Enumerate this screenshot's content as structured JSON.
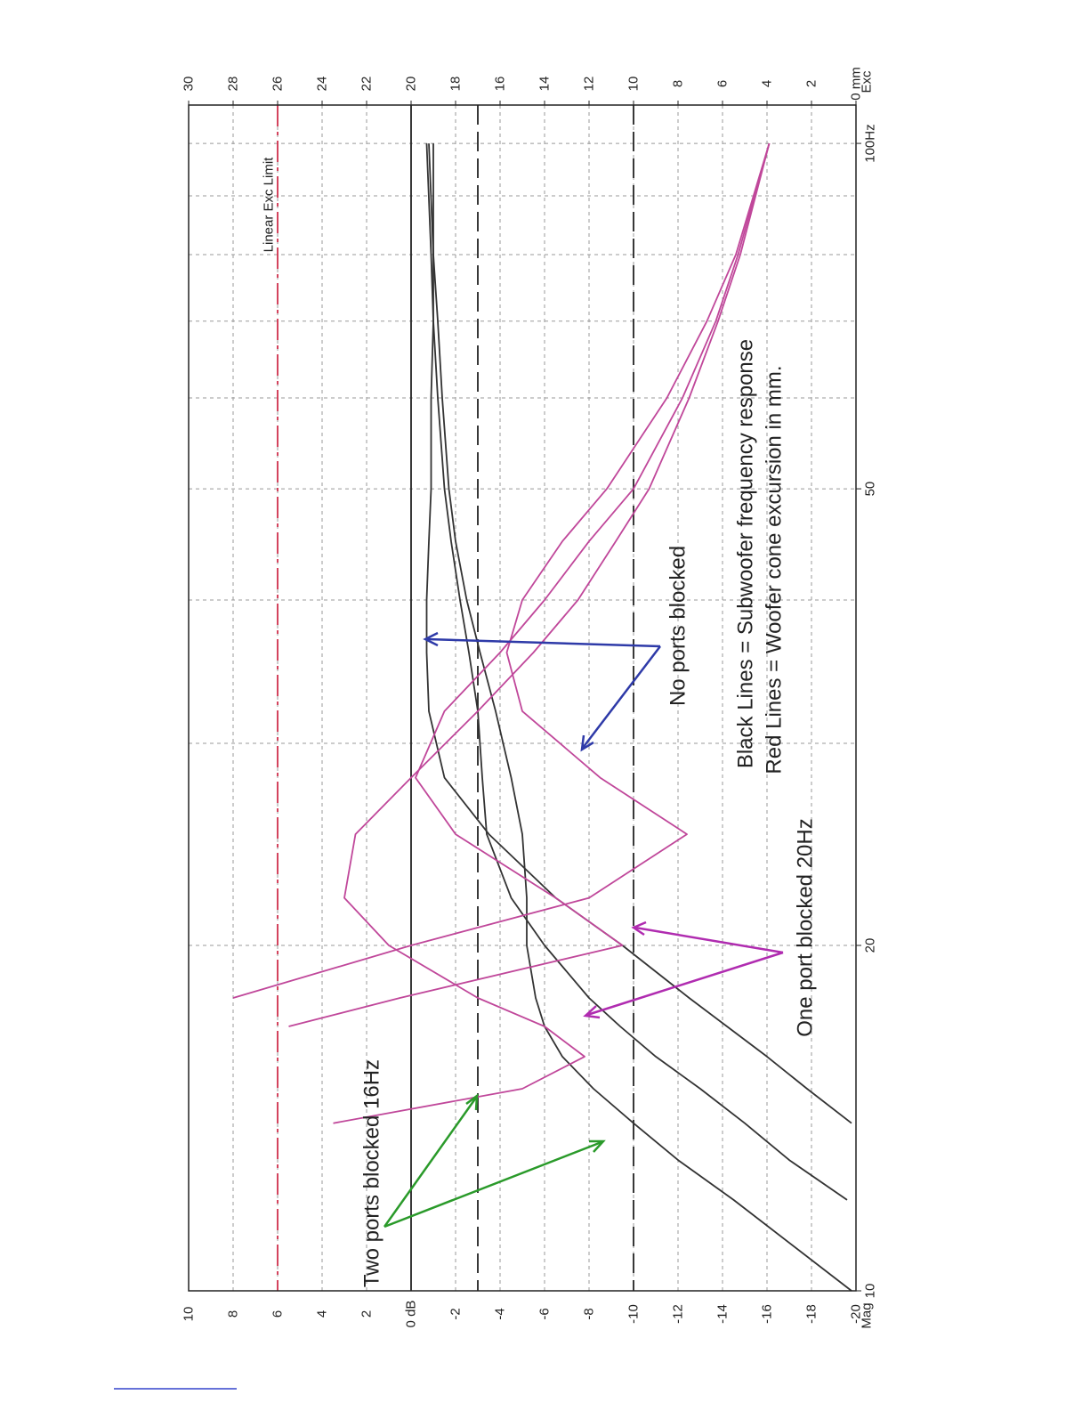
{
  "chart_data": {
    "type": "line",
    "x_scale": "log",
    "xlim": [
      10,
      108
    ],
    "xticks": [
      10,
      20,
      50,
      {
        "value": 100,
        "label": "100Hz"
      }
    ],
    "xgrid": [
      10,
      20,
      30,
      40,
      50,
      60,
      70,
      80,
      90,
      100
    ],
    "ylabel": "Mag",
    "ylim": [
      -20,
      10
    ],
    "yticks": [
      -20,
      -18,
      -16,
      -14,
      -12,
      -10,
      -8,
      -6,
      -4,
      -2,
      {
        "value": 0,
        "label": "0 dB"
      },
      2,
      4,
      6,
      8,
      10
    ],
    "y2label": "Exc",
    "y2label_color": "#c0479a",
    "y2lim": [
      0,
      30
    ],
    "y2ticks": [
      {
        "value": 0,
        "label": "0 mm"
      },
      2,
      4,
      6,
      8,
      10,
      12,
      14,
      16,
      18,
      20,
      22,
      24,
      26,
      28,
      30
    ],
    "grid": true,
    "x": [
      10,
      12,
      13,
      14,
      15,
      16,
      17,
      18,
      20,
      22,
      25,
      28,
      32,
      36,
      40,
      45,
      50,
      60,
      70,
      80,
      100
    ],
    "series": [
      {
        "color": "#333333",
        "values": [
          -19.8,
          -14.5,
          -12,
          -10,
          -8.2,
          -6.8,
          -6,
          -5.6,
          -5.2,
          -5.2,
          -5,
          -4.5,
          -3.8,
          -3.1,
          -2.5,
          -2,
          -1.7,
          -1.4,
          -1.2,
          -1,
          -0.8
        ]
      },
      {
        "color": "#333333",
        "values": [
          null,
          -19.6,
          -17,
          -15,
          -13,
          -11,
          -9.4,
          -8,
          -6,
          -4.5,
          -3.4,
          -3.2,
          -3,
          -2.6,
          -2.2,
          -1.8,
          -1.5,
          -1.2,
          -1,
          -0.9,
          -0.7
        ]
      },
      {
        "color": "#333333",
        "values": [
          null,
          null,
          null,
          -19.8,
          -17.8,
          -16,
          -14.2,
          -12.5,
          -9.5,
          -6.5,
          -3.5,
          -1.5,
          -0.8,
          -0.7,
          -0.7,
          -0.8,
          -0.9,
          -0.9,
          -1,
          -1,
          -1
        ]
      },
      {
        "color": "#c0479a",
        "axis": "y2",
        "values": [
          null,
          null,
          null,
          23.5,
          15,
          12.2,
          14,
          17,
          21,
          23,
          22.5,
          20,
          17,
          14.5,
          12.5,
          10.8,
          9.3,
          7.5,
          6.2,
          5.2,
          3.9
        ]
      },
      {
        "color": "#c0479a",
        "axis": "y2",
        "values": [
          null,
          null,
          null,
          null,
          null,
          null,
          25.5,
          20.5,
          10.5,
          13.5,
          18,
          19.8,
          18.5,
          16,
          14,
          12,
          10,
          7.8,
          6.3,
          5.3,
          3.9
        ]
      },
      {
        "color": "#c0479a",
        "axis": "y2",
        "values": [
          null,
          null,
          null,
          null,
          null,
          null,
          null,
          28,
          20,
          12,
          7.6,
          11.5,
          15,
          15.7,
          15,
          13.2,
          11.2,
          8.5,
          6.7,
          5.4,
          3.9
        ]
      }
    ],
    "hlines": [
      {
        "value": 0,
        "style": "solid"
      },
      {
        "value": -3,
        "style": "dashed"
      },
      {
        "value": -10,
        "style": "dashed"
      }
    ],
    "y2lines": [
      {
        "value": 26,
        "label": "Linear Exc Limit",
        "color": "#d0304c"
      }
    ],
    "annotations": [
      {
        "text": "Black Lines = Subwoofer frequency response",
        "color": "#111111"
      },
      {
        "text": "Red Lines = Woofer cone excursion in mm.",
        "color": "#8e1840"
      },
      {
        "text": "No ports blocked",
        "color": "#2e3aa8"
      },
      {
        "text": "One port blocked 20Hz",
        "color": "#b02cb0"
      },
      {
        "text": "Two ports blocked 16Hz",
        "color": "#2a9a2a"
      }
    ]
  }
}
